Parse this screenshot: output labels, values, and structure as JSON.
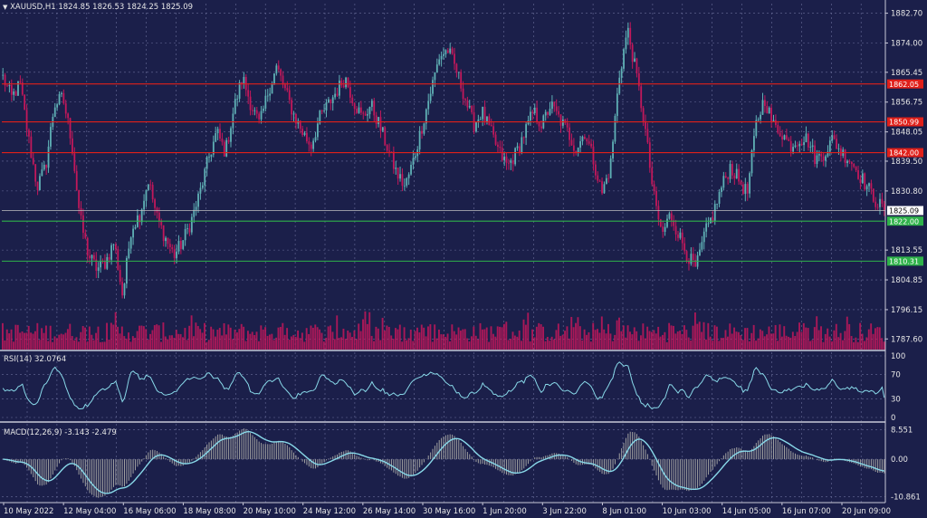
{
  "header": {
    "symbol": "XAUUSD,H1",
    "ohlc": "1824.85 1826.53 1824.25 1825.09"
  },
  "colors": {
    "background": "#1b1f4a",
    "grid": "#6a6e9a",
    "separator": "#c8c8d8",
    "bull": "#5fb0b5",
    "bear": "#c2185b",
    "resistance": "#e0201a",
    "support": "#2fb24a",
    "indicator_line": "#88d8e8",
    "macd_histogram": "#a0a0a0",
    "text": "#e6e6e6"
  },
  "chart_data": [
    {
      "type": "candlestick",
      "title": "XAUUSD,H1",
      "y_ticks": [
        "1882.70",
        "1874.00",
        "1865.45",
        "1856.75",
        "1848.05",
        "1839.50",
        "1830.80",
        "1813.55",
        "1804.85",
        "1796.15",
        "1787.60"
      ],
      "y_tick_values": [
        1882.7,
        1874.0,
        1865.45,
        1856.75,
        1848.05,
        1839.5,
        1830.8,
        1813.55,
        1804.85,
        1796.15,
        1787.6
      ],
      "ylim": [
        1784.5,
        1885.5
      ],
      "x_ticks": [
        "10 May 2022",
        "12 May 04:00",
        "16 May 06:00",
        "18 May 08:00",
        "20 May 10:00",
        "24 May 12:00",
        "26 May 14:00",
        "30 May 16:00",
        "1 Jun 20:00",
        "3 Jun 22:00",
        "8 Jun 01:00",
        "10 Jun 03:00",
        "14 Jun 05:00",
        "16 Jun 07:00",
        "20 Jun 09:00"
      ],
      "current_price": "1825.09",
      "resistance_levels": [
        "1862.05",
        "1850.99",
        "1842.00"
      ],
      "support_levels": [
        "1822.00",
        "1810.31"
      ],
      "price_path": [
        [
          1864.0,
          1858.0,
          1862.0,
          1846.0,
          1832.0,
          1838.0,
          1856.0,
          1858.0,
          1846.0,
          1823.0,
          1812.0,
          1808.0,
          1810.0,
          1816.0,
          1800.0,
          1820.0,
          1824.0,
          1834.0,
          1823.0,
          1817.0,
          1812.0,
          1816.0,
          1822.0,
          1830.0,
          1840.0,
          1848.0,
          1842.0,
          1855.0,
          1864.0,
          1856.0,
          1850.0,
          1860.0,
          1867.0,
          1860.0,
          1853.0,
          1848.0,
          1844.0,
          1852.0,
          1856.0,
          1860.0,
          1864.0,
          1857.0,
          1852.0,
          1856.0,
          1850.0,
          1843.0,
          1836.0,
          1832.0,
          1840.0,
          1850.0,
          1860.0,
          1870.0,
          1872.0,
          1866.0,
          1858.0,
          1850.0,
          1854.0,
          1848.0,
          1842.0,
          1838.0,
          1842.0,
          1848.0,
          1854.0,
          1850.0,
          1856.0,
          1852.0,
          1848.0,
          1843.0,
          1848.0,
          1840.0,
          1830.0,
          1838.0,
          1864.0,
          1878.0,
          1865.0,
          1850.0,
          1830.0,
          1818.0,
          1824.0,
          1818.0,
          1812.0,
          1808.0,
          1818.0,
          1824.0,
          1832.0,
          1838.0,
          1834.0,
          1830.0,
          1850.0,
          1858.0,
          1850.0,
          1848.0,
          1844.0,
          1846.0,
          1846.0,
          1840.0,
          1842.0,
          1846.0,
          1842.0,
          1840.0,
          1836.0,
          1832.0,
          1828.0,
          1825.09
        ],
        [
          1864.0,
          1858.0,
          1862.0,
          1846.0,
          1832.0,
          1838.0,
          1856.0,
          1858.0,
          1846.0,
          1823.0,
          1812.0,
          1808.0,
          1810.0,
          1816.0,
          1800.0,
          1820.0,
          1824.0,
          1834.0,
          1823.0,
          1817.0,
          1812.0,
          1816.0,
          1822.0,
          1830.0,
          1840.0,
          1848.0,
          1842.0,
          1855.0,
          1864.0,
          1856.0,
          1850.0,
          1860.0,
          1867.0,
          1860.0,
          1853.0,
          1848.0,
          1844.0,
          1852.0,
          1856.0,
          1860.0,
          1864.0,
          1857.0,
          1852.0,
          1856.0,
          1850.0,
          1843.0,
          1836.0,
          1832.0,
          1840.0,
          1850.0,
          1860.0,
          1870.0,
          1872.0,
          1866.0,
          1858.0,
          1850.0,
          1854.0,
          1848.0,
          1842.0,
          1838.0,
          1842.0,
          1848.0,
          1854.0,
          1850.0,
          1856.0,
          1852.0,
          1848.0,
          1843.0,
          1848.0,
          1840.0,
          1830.0,
          1838.0,
          1864.0,
          1878.0,
          1865.0,
          1850.0,
          1830.0,
          1818.0,
          1824.0,
          1818.0,
          1812.0,
          1808.0,
          1818.0,
          1824.0,
          1832.0,
          1838.0,
          1834.0,
          1830.0,
          1850.0,
          1858.0,
          1850.0,
          1848.0,
          1844.0,
          1846.0,
          1846.0,
          1840.0,
          1842.0,
          1846.0,
          1842.0,
          1840.0,
          1836.0,
          1832.0,
          1828.0,
          1825.09
        ]
      ]
    },
    {
      "type": "line",
      "title": "RSI(14) 32.0764",
      "name": "RSI(14)",
      "value": "32.0764",
      "y_ticks": [
        "100",
        "70",
        "30",
        "0"
      ],
      "y_tick_values": [
        100,
        70,
        30,
        0
      ],
      "ylim": [
        0,
        100
      ]
    },
    {
      "type": "bar",
      "title": "MACD(12,26,9) -3.143 -2.479",
      "name": "MACD(12,26,9)",
      "values_text": "-3.143 -2.479",
      "y_ticks": [
        "8.551",
        "0.00",
        "-10.861"
      ],
      "y_tick_values": [
        8.551,
        0.0,
        -10.861
      ],
      "ylim": [
        -11.5,
        9.2
      ]
    }
  ]
}
